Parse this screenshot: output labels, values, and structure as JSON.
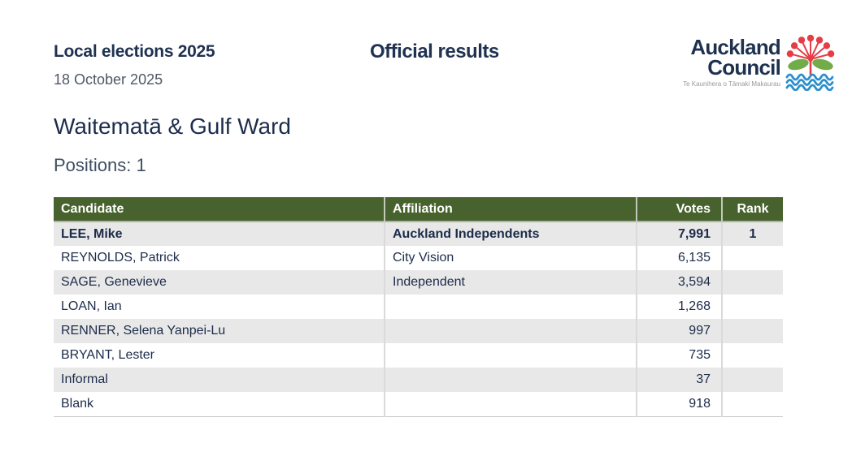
{
  "document": {
    "title": "Local elections 2025",
    "date": "18 October 2025",
    "subtitle": "Official results"
  },
  "logo": {
    "org_line1": "Auckland",
    "org_line2": "Council",
    "tagline": "Te Kaunihera o Tāmaki Makaurau",
    "icon": "pohutukawa-flower-and-waves-icon"
  },
  "ward": {
    "title": "Waitematā & Gulf Ward",
    "positions": "Positions: 1"
  },
  "table": {
    "columns": [
      "Candidate",
      "Affiliation",
      "Votes",
      "Rank"
    ],
    "rows": [
      {
        "candidate": "LEE, Mike",
        "affiliation": "Auckland Independents",
        "votes": "7,991",
        "rank": "1",
        "elected": true
      },
      {
        "candidate": "REYNOLDS, Patrick",
        "affiliation": "City Vision",
        "votes": "6,135",
        "rank": "",
        "elected": false
      },
      {
        "candidate": "SAGE, Genevieve",
        "affiliation": "Independent",
        "votes": "3,594",
        "rank": "",
        "elected": false
      },
      {
        "candidate": "LOAN, Ian",
        "affiliation": "",
        "votes": "1,268",
        "rank": "",
        "elected": false
      },
      {
        "candidate": "RENNER, Selena Yanpei-Lu",
        "affiliation": "",
        "votes": "997",
        "rank": "",
        "elected": false
      },
      {
        "candidate": "BRYANT, Lester",
        "affiliation": "",
        "votes": "735",
        "rank": "",
        "elected": false
      },
      {
        "candidate": "Informal",
        "affiliation": "",
        "votes": "37",
        "rank": "",
        "elected": false
      },
      {
        "candidate": "Blank",
        "affiliation": "",
        "votes": "918",
        "rank": "",
        "elected": false
      }
    ]
  },
  "colors": {
    "header_green": "#47622c",
    "row_alt": "#e8e8e8",
    "text_navy": "#1c2b49",
    "logo_red": "#e63c46",
    "logo_green": "#72ab49",
    "logo_blue": "#2b8fcc"
  }
}
